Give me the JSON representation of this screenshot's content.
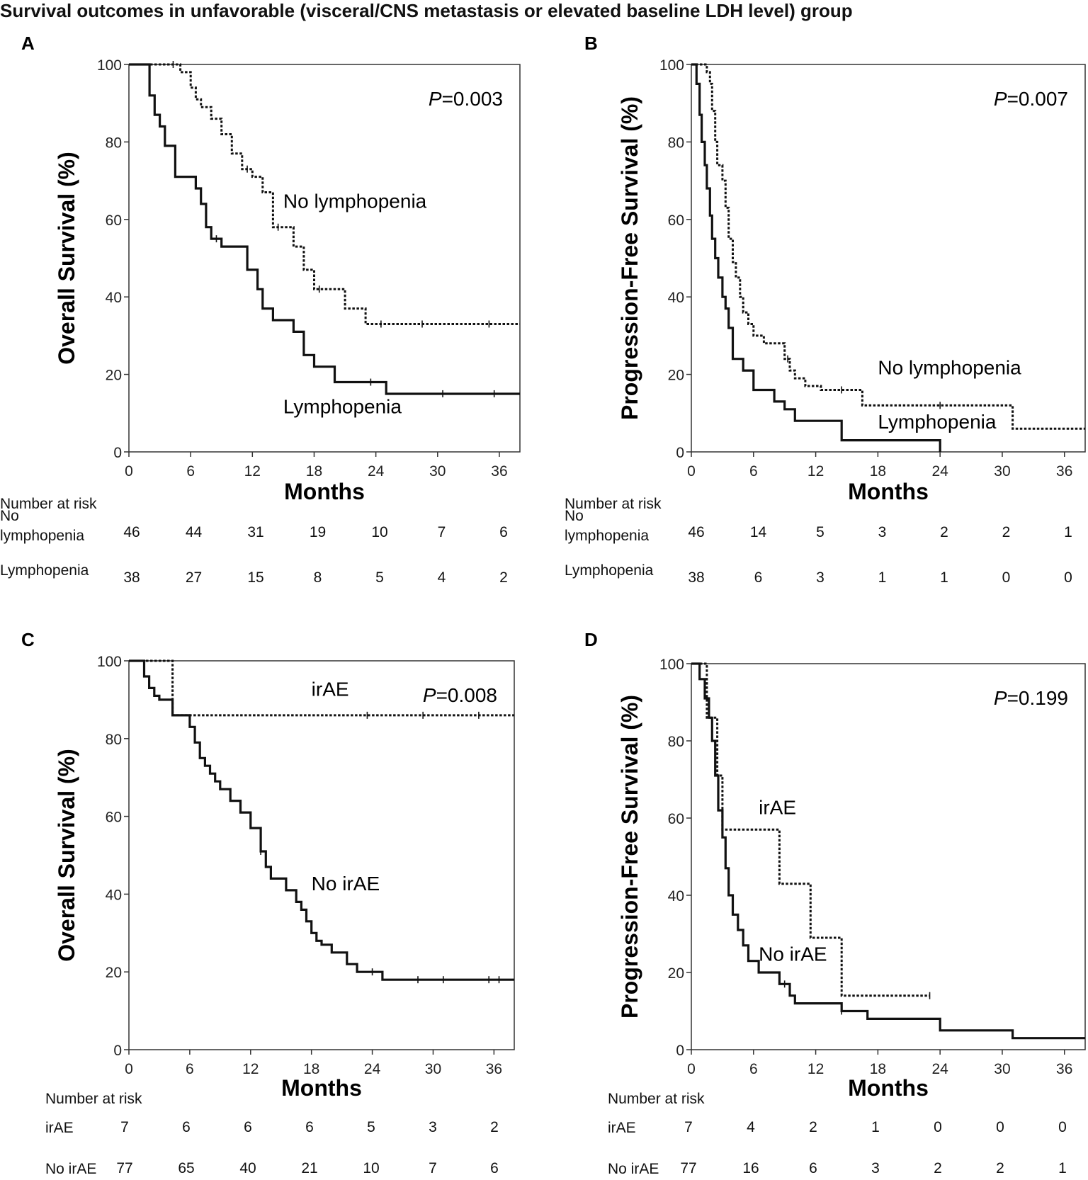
{
  "figure": {
    "title": "Survival outcomes in unfavorable (visceral/CNS metastasis or elevated baseline LDH level) group"
  },
  "chart_data": [
    {
      "panel": "A",
      "type": "line",
      "ylabel": "Overall Survival (%)",
      "xlabel": "Months",
      "xlim": [
        0,
        38
      ],
      "ylim": [
        0,
        100
      ],
      "xticks": [
        0,
        6,
        12,
        18,
        24,
        30,
        36
      ],
      "yticks": [
        0,
        20,
        40,
        60,
        80,
        100
      ],
      "p_label": "P",
      "p_value": "=0.003",
      "series": [
        {
          "name": "No lymphopenia",
          "style": "dotted",
          "label_pos": [
            15,
            63
          ],
          "x": [
            0,
            4.5,
            5,
            6,
            6.5,
            7,
            8,
            9,
            10,
            11,
            12,
            13,
            14,
            16,
            17,
            18,
            19,
            21,
            23,
            38
          ],
          "y": [
            100,
            100,
            98,
            94,
            91,
            89,
            86,
            82,
            77,
            73,
            71,
            67,
            58,
            53,
            47,
            42,
            42,
            37,
            33,
            33
          ],
          "censor": [
            4.3,
            11.5,
            14.5,
            18.5,
            24.5,
            28.5,
            35
          ]
        },
        {
          "name": "Lymphopenia",
          "style": "solid",
          "label_pos": [
            15,
            10
          ],
          "x": [
            0,
            2,
            2.5,
            3,
            3.5,
            4.5,
            6.5,
            7,
            7.5,
            8,
            9,
            10,
            11,
            11.5,
            12.5,
            13,
            14,
            16,
            17,
            18,
            20,
            23.5,
            25,
            38
          ],
          "y": [
            100,
            92,
            87,
            84,
            79,
            71,
            68,
            64,
            58,
            55,
            53,
            53,
            53,
            47,
            42,
            37,
            34,
            31,
            25,
            22,
            18,
            18,
            15,
            15
          ],
          "censor": [
            8.5,
            23.5,
            30.5,
            35.5
          ]
        }
      ],
      "risk_table": {
        "header": "Number at risk",
        "rows": [
          {
            "label": "No\nlymphopenia",
            "values": [
              "46",
              "44",
              "31",
              "19",
              "10",
              "7",
              "6"
            ]
          },
          {
            "label": "Lymphopenia",
            "values": [
              "38",
              "27",
              "15",
              "8",
              "5",
              "4",
              "2"
            ]
          }
        ]
      }
    },
    {
      "panel": "B",
      "type": "line",
      "ylabel": "Progression-Free Survival (%)",
      "xlabel": "Months",
      "xlim": [
        0,
        38
      ],
      "ylim": [
        0,
        100
      ],
      "xticks": [
        0,
        6,
        12,
        18,
        24,
        30,
        36
      ],
      "yticks": [
        0,
        20,
        40,
        60,
        80,
        100
      ],
      "p_label": "P",
      "p_value": "=0.007",
      "series": [
        {
          "name": "No lymphopenia",
          "style": "dotted",
          "label_pos": [
            18,
            20
          ],
          "x": [
            0,
            1.5,
            1.8,
            2,
            2.3,
            2.5,
            3,
            3.3,
            3.6,
            4,
            4.3,
            4.7,
            5,
            5.5,
            6,
            7,
            8,
            9,
            9.5,
            10,
            11,
            12.5,
            14,
            16.5,
            31,
            38
          ],
          "y": [
            100,
            98,
            95,
            88,
            80,
            74,
            70,
            63,
            55,
            49,
            45,
            40,
            36,
            33,
            30,
            28,
            28,
            24,
            21,
            19,
            17,
            16,
            16,
            12,
            6,
            6
          ],
          "censor": [
            9.3,
            14.5,
            24
          ]
        },
        {
          "name": "Lymphopenia",
          "style": "solid",
          "label_pos": [
            18,
            6
          ],
          "x": [
            0,
            0.5,
            0.8,
            1,
            1.3,
            1.5,
            1.8,
            2,
            2.3,
            2.6,
            3,
            3.3,
            3.6,
            4,
            5,
            6,
            8,
            9,
            10,
            12,
            14.5,
            24
          ],
          "y": [
            100,
            95,
            87,
            80,
            74,
            68,
            61,
            55,
            50,
            45,
            40,
            37,
            32,
            24,
            21,
            16,
            13,
            11,
            8,
            8,
            3,
            0
          ],
          "censor": []
        }
      ],
      "risk_table": {
        "header": "Number at risk",
        "rows": [
          {
            "label": "No\nlymphopenia",
            "values": [
              "46",
              "14",
              "5",
              "3",
              "2",
              "2",
              "1"
            ]
          },
          {
            "label": "Lymphopenia",
            "values": [
              "38",
              "6",
              "3",
              "1",
              "1",
              "0",
              "0"
            ]
          }
        ]
      }
    },
    {
      "panel": "C",
      "type": "line",
      "ylabel": "Overall Survival (%)",
      "xlabel": "Months",
      "xlim": [
        0,
        38
      ],
      "ylim": [
        0,
        100
      ],
      "xticks": [
        0,
        6,
        12,
        18,
        24,
        30,
        36
      ],
      "yticks": [
        0,
        20,
        40,
        60,
        80,
        100
      ],
      "p_label": "P",
      "p_value": "=0.008",
      "series": [
        {
          "name": "irAE",
          "style": "dotted",
          "label_pos": [
            18,
            91
          ],
          "x": [
            0,
            4.3,
            38
          ],
          "y": [
            100,
            86,
            86
          ],
          "censor": [
            23.5,
            29,
            34.5
          ]
        },
        {
          "name": "No irAE",
          "style": "solid",
          "label_pos": [
            18,
            41
          ],
          "x": [
            0,
            1.5,
            2,
            2.5,
            3,
            4.3,
            6,
            6.5,
            7,
            7.5,
            8,
            8.5,
            9,
            10,
            11,
            12,
            13,
            13.5,
            14,
            15.5,
            16.5,
            17,
            17.5,
            18,
            18.5,
            19,
            20,
            21.5,
            22.5,
            25,
            38
          ],
          "y": [
            100,
            96,
            93,
            91,
            90,
            86,
            83,
            79,
            75,
            73,
            71,
            69,
            67,
            64,
            61,
            57,
            51,
            47,
            44,
            41,
            38,
            36,
            33,
            30,
            28,
            27,
            25,
            22,
            20,
            18,
            18
          ],
          "censor": [
            13,
            24,
            28.5,
            31,
            35.5,
            36.5
          ]
        }
      ],
      "risk_table": {
        "header": "Number at risk",
        "rows": [
          {
            "label": "irAE",
            "values": [
              "7",
              "6",
              "6",
              "6",
              "5",
              "3",
              "2"
            ]
          },
          {
            "label": "No irAE",
            "values": [
              "77",
              "65",
              "40",
              "21",
              "10",
              "7",
              "6"
            ]
          }
        ]
      }
    },
    {
      "panel": "D",
      "type": "line",
      "ylabel": "Progression-Free Survival (%)",
      "xlabel": "Months",
      "xlim": [
        0,
        38
      ],
      "ylim": [
        0,
        100
      ],
      "xticks": [
        0,
        6,
        12,
        18,
        24,
        30,
        36
      ],
      "yticks": [
        0,
        20,
        40,
        60,
        80,
        100
      ],
      "p_label": "P",
      "p_value": "=0.199",
      "series": [
        {
          "name": "irAE",
          "style": "dotted",
          "label_pos": [
            6.5,
            61
          ],
          "x": [
            0,
            1.5,
            2.5,
            3,
            8.5,
            11.5,
            14.5,
            23
          ],
          "y": [
            100,
            86,
            71,
            57,
            43,
            29,
            14,
            14
          ],
          "censor": [
            23
          ]
        },
        {
          "name": "No irAE",
          "style": "solid",
          "label_pos": [
            6.5,
            23
          ],
          "x": [
            0,
            0.8,
            1.3,
            1.7,
            2,
            2.3,
            2.6,
            3,
            3.3,
            3.6,
            4,
            4.5,
            5,
            5.5,
            6.5,
            8.5,
            9.5,
            10,
            12.5,
            14.5,
            17,
            24,
            31,
            38
          ],
          "y": [
            100,
            96,
            91,
            86,
            80,
            71,
            62,
            55,
            47,
            40,
            35,
            31,
            27,
            23,
            20,
            17,
            14,
            12,
            12,
            10,
            8,
            5,
            3,
            3
          ],
          "censor": [
            9,
            14.5
          ]
        }
      ],
      "risk_table": {
        "header": "Number at risk",
        "rows": [
          {
            "label": "irAE",
            "values": [
              "7",
              "4",
              "2",
              "1",
              "0",
              "0",
              "0"
            ]
          },
          {
            "label": "No irAE",
            "values": [
              "77",
              "16",
              "6",
              "3",
              "2",
              "2",
              "1"
            ]
          }
        ]
      }
    }
  ]
}
